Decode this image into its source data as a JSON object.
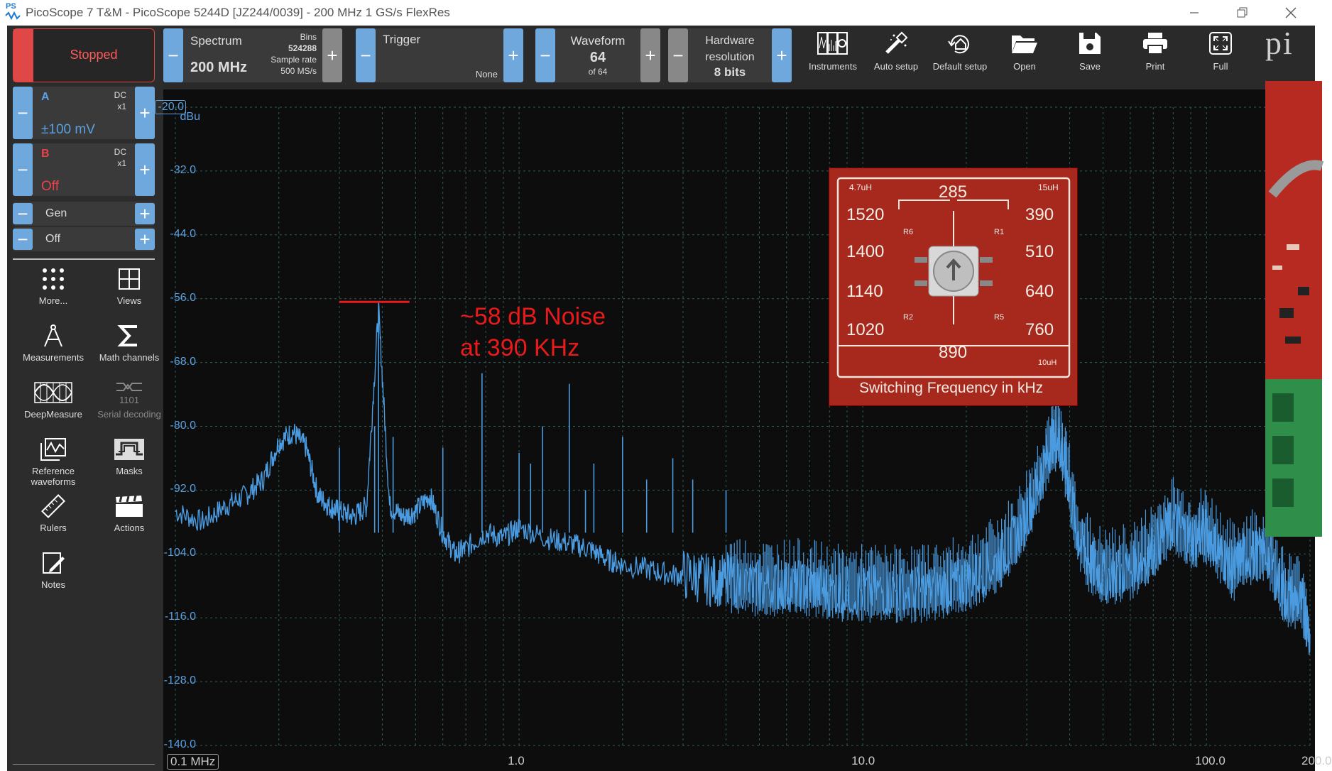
{
  "window": {
    "logo_text": "PS",
    "title": "PicoScope 7 T&M  - PicoScope 5244D [JZ244/0039] - 200 MHz 1 GS/s FlexRes"
  },
  "run_status": "Stopped",
  "channels": [
    {
      "name": "A",
      "coupling": "DC",
      "probe": "x1",
      "range": "±100 mV",
      "color": "#5aa0e0"
    },
    {
      "name": "B",
      "coupling": "DC",
      "probe": "x1",
      "range": "Off",
      "color": "#e8424a"
    }
  ],
  "generator": {
    "label": "Gen",
    "state": "Off"
  },
  "tools": [
    {
      "label": "More...",
      "icon": "grid-dots-icon"
    },
    {
      "label": "Views",
      "icon": "views-grid-icon"
    },
    {
      "label": "Measurements",
      "icon": "compass-icon"
    },
    {
      "label": "Math channels",
      "icon": "sigma-icon"
    },
    {
      "label": "DeepMeasure",
      "icon": "deepmeasure-icon"
    },
    {
      "label": "Serial decoding",
      "icon": "serial-decoding-icon"
    },
    {
      "label": "Reference waveforms",
      "icon": "reference-waveforms-icon"
    },
    {
      "label": "Masks",
      "icon": "masks-icon"
    },
    {
      "label": "Rulers",
      "icon": "ruler-icon"
    },
    {
      "label": "Actions",
      "icon": "clapperboard-icon"
    },
    {
      "label": "Notes",
      "icon": "notes-icon"
    }
  ],
  "toolbar": {
    "spectrum": {
      "title": "Spectrum",
      "value": "200 MHz",
      "bins_label": "Bins",
      "bins_value": "524288",
      "sample_rate_label": "Sample rate",
      "sample_rate_value": "500 MS/s"
    },
    "trigger": {
      "title": "Trigger",
      "value": "None"
    },
    "waveform": {
      "title": "Waveform",
      "value": "64",
      "of": "of 64"
    },
    "hardware": {
      "title_1": "Hardware",
      "title_2": "resolution",
      "value": "8 bits"
    },
    "buttons": [
      {
        "label": "Instruments",
        "icon": "instruments-icon"
      },
      {
        "label": "Auto setup",
        "icon": "auto-setup-wand-icon"
      },
      {
        "label": "Default setup",
        "icon": "default-setup-home-icon"
      },
      {
        "label": "Open",
        "icon": "folder-open-icon"
      },
      {
        "label": "Save",
        "icon": "save-disk-icon"
      },
      {
        "label": "Print",
        "icon": "printer-icon"
      },
      {
        "label": "Full",
        "icon": "fullscreen-icon"
      }
    ]
  },
  "logo_partial": "pi",
  "annotation": {
    "line1": "~58 dB Noise",
    "line2": "at 390 KHz",
    "color": "#e81a1a"
  },
  "inset_board": {
    "freqs": [
      "285",
      "390",
      "510",
      "640",
      "760",
      "890",
      "1020",
      "1140",
      "1400",
      "1520"
    ],
    "inductor_left": "4.7uH",
    "inductor_right": "15uH",
    "inductor_bottom": "10uH",
    "caption": "Switching Frequency in kHz",
    "resistors": [
      "R6",
      "R1",
      "R2",
      "R5"
    ]
  },
  "chart_data": {
    "type": "line",
    "ylabel": "dBu",
    "ylim": [
      -140.0,
      -20.0
    ],
    "y_ticks": [
      "-20.0",
      "-32.0",
      "-44.0",
      "-56.0",
      "-68.0",
      "-80.0",
      "-92.0",
      "-104.0",
      "-116.0",
      "-128.0",
      "-140.0"
    ],
    "xscale": "log",
    "xlim": [
      0.1,
      200.0
    ],
    "x_ticks": [
      "0.1 MHz",
      "1.0",
      "10.0",
      "100.0",
      "200.0"
    ],
    "grid": true,
    "series": [
      {
        "color": "#4a9be0",
        "x": [
          0.1,
          0.12,
          0.14,
          0.16,
          0.18,
          0.2,
          0.22,
          0.24,
          0.26,
          0.28,
          0.3,
          0.33,
          0.36,
          0.39,
          0.42,
          0.46,
          0.5,
          0.55,
          0.6,
          0.65,
          0.7,
          0.8,
          0.9,
          1.0,
          1.2,
          1.4,
          1.6,
          1.8,
          2.0,
          2.4,
          2.8,
          3.2,
          3.6,
          4.0,
          5.0,
          6.0,
          7.0,
          8.0,
          10.0,
          12.0,
          15.0,
          18.0,
          20.0,
          24.0,
          28.0,
          32.0,
          35.0,
          37.0,
          39.0,
          42.0,
          46.0,
          50.0,
          60.0,
          70.0,
          80.0,
          90.0,
          100.0,
          110.0,
          120.0,
          130.0,
          150.0,
          170.0,
          190.0,
          200.0
        ],
        "y": [
          -96.0,
          -98.0,
          -95.0,
          -93.0,
          -90.0,
          -83.0,
          -81.0,
          -84.0,
          -93.0,
          -95.0,
          -96.0,
          -97.0,
          -95.0,
          -58.0,
          -95.0,
          -97.0,
          -96.0,
          -93.0,
          -100.0,
          -104.0,
          -103.0,
          -100.0,
          -101.0,
          -99.0,
          -101.0,
          -102.0,
          -103.0,
          -105.0,
          -106.0,
          -107.0,
          -108.0,
          -108.0,
          -109.0,
          -109.0,
          -110.0,
          -110.0,
          -110.0,
          -111.0,
          -111.0,
          -111.0,
          -111.0,
          -110.0,
          -109.0,
          -106.0,
          -101.0,
          -92.0,
          -84.0,
          -82.0,
          -88.0,
          -100.0,
          -106.0,
          -108.0,
          -107.0,
          -103.0,
          -98.0,
          -101.0,
          -100.0,
          -104.0,
          -107.0,
          -104.0,
          -104.0,
          -112.0,
          -113.0,
          -119.0
        ]
      }
    ],
    "peaks": [
      {
        "x": 0.39,
        "y": -58.0
      },
      {
        "x": 0.38,
        "y": -80.0
      },
      {
        "x": 0.3,
        "y": -84.0
      },
      {
        "x": 0.43,
        "y": -82.0
      },
      {
        "x": 0.6,
        "y": -84.0
      },
      {
        "x": 0.78,
        "y": -70.0
      },
      {
        "x": 1.0,
        "y": -85.0
      },
      {
        "x": 1.08,
        "y": -87.0
      },
      {
        "x": 1.17,
        "y": -80.0
      },
      {
        "x": 1.4,
        "y": -72.0
      },
      {
        "x": 1.56,
        "y": -92.0
      },
      {
        "x": 1.65,
        "y": -87.0
      },
      {
        "x": 2.0,
        "y": -82.0
      },
      {
        "x": 2.35,
        "y": -90.0
      },
      {
        "x": 2.8,
        "y": -86.0
      },
      {
        "x": 3.2,
        "y": -90.0
      },
      {
        "x": 4.0,
        "y": -92.0
      }
    ]
  }
}
